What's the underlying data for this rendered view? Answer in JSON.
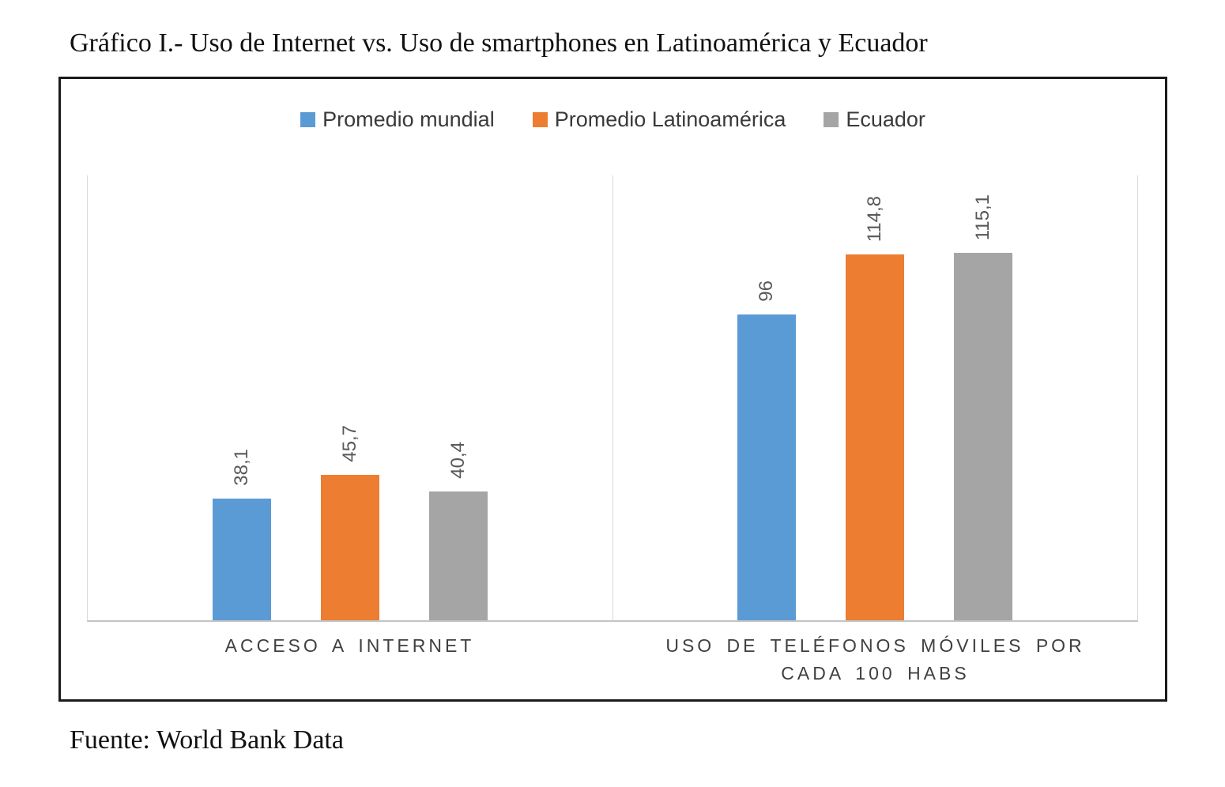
{
  "title": "Gráfico I.- Uso de Internet vs. Uso de smartphones en Latinoamérica y Ecuador",
  "source": "Fuente: World Bank Data",
  "legend": [
    {
      "label": "Promedio mundial",
      "color": "#5b9bd5"
    },
    {
      "label": "Promedio Latinoamérica",
      "color": "#ed7d31"
    },
    {
      "label": "Ecuador",
      "color": "#a5a5a5"
    }
  ],
  "chart_data": {
    "type": "bar",
    "categories": [
      "ACCESO A INTERNET",
      "USO DE TELÉFONOS MÓVILES POR CADA 100 HABS"
    ],
    "series": [
      {
        "name": "Promedio mundial",
        "color": "#5b9bd5",
        "values": [
          38.1,
          96
        ],
        "labels": [
          "38,1",
          "96"
        ]
      },
      {
        "name": "Promedio Latinoamérica",
        "color": "#ed7d31",
        "values": [
          45.7,
          114.8
        ],
        "labels": [
          "45,7",
          "114,8"
        ]
      },
      {
        "name": "Ecuador",
        "color": "#a5a5a5",
        "values": [
          40.4,
          115.1
        ],
        "labels": [
          "40,4",
          "115,1"
        ]
      }
    ],
    "title": "",
    "xlabel": "",
    "ylabel": "",
    "ylim": [
      0,
      140
    ],
    "grid": false,
    "y_axis_visible": false,
    "legend_position": "top",
    "value_label_rotation": 90
  }
}
